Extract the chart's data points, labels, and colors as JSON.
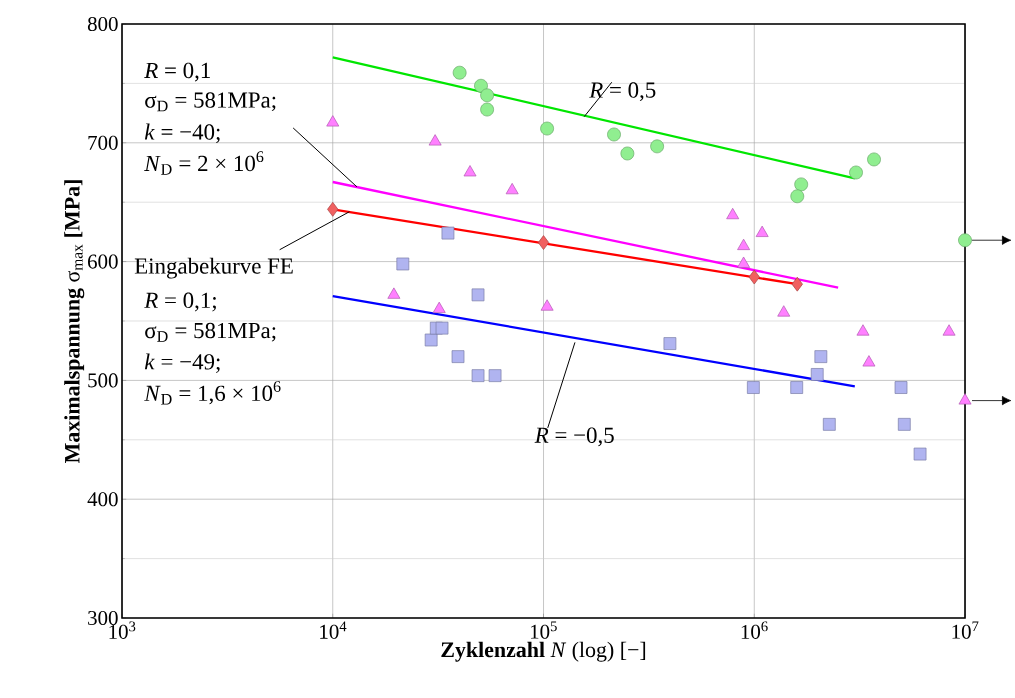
{
  "chart_data": {
    "type": "scatter",
    "xlabel": "**Zyklenzahl** *N* (log) [−]",
    "ylabel": "**Maximalspannung** σ$_{max}$ **[MPa]**",
    "log": "x",
    "grid": true,
    "xlim": [
      1000,
      10000000
    ],
    "ylim": [
      300,
      800
    ],
    "xticks": [
      {
        "value": 1000,
        "label": "10$^{3}$"
      },
      {
        "value": 10000,
        "label": "10$^{4}$"
      },
      {
        "value": 100000,
        "label": "10$^{5}$"
      },
      {
        "value": 1000000,
        "label": "10$^{6}$"
      },
      {
        "value": 10000000,
        "label": "10$^{7}$"
      }
    ],
    "yticks": [
      300,
      400,
      500,
      600,
      700,
      800
    ],
    "series": [
      {
        "marker": "circle",
        "color": "#90ee90",
        "x": [
          40000,
          50500,
          54000,
          54000,
          104000,
          216000,
          250000,
          346000,
          3040000,
          3700000,
          1670000,
          1600000,
          10000000
        ],
        "values": [
          759,
          748,
          740,
          728,
          712,
          707,
          691,
          697,
          675,
          686,
          665,
          655,
          618
        ]
      },
      {
        "marker": "triangle",
        "color": "#ff80ff",
        "x": [
          10000,
          30600,
          44800,
          71000,
          790000,
          890000,
          1090000,
          890000,
          19500,
          32000,
          104000,
          1380000,
          3280000,
          3500000,
          8400000,
          10000000
        ],
        "values": [
          717,
          701,
          675,
          660,
          639,
          613,
          624,
          598,
          572,
          560,
          562,
          557,
          541,
          515,
          541,
          483
        ]
      },
      {
        "marker": "square",
        "color": "#b0b4f0",
        "x": [
          21500,
          35200,
          29300,
          31000,
          33000,
          39300,
          48900,
          48900,
          58900,
          398000,
          2070000,
          1990000,
          990000,
          1590000,
          4970000,
          2270000,
          5150000,
          6120000
        ],
        "values": [
          598,
          624,
          534,
          544,
          544,
          520,
          504,
          572,
          504,
          531,
          520,
          505,
          494,
          494,
          494,
          463,
          463,
          438
        ]
      },
      {
        "marker": "diamond",
        "color": "#f06060",
        "x": [
          10000,
          100000,
          1000000,
          1600000
        ],
        "values": [
          644,
          616,
          587,
          581
        ]
      },
      {
        "type": "line",
        "color": "#00e600",
        "x": [
          10000,
          3000000
        ],
        "values": [
          772,
          670
        ]
      },
      {
        "type": "line",
        "color": "#ff00ff",
        "x": [
          10000,
          2500000
        ],
        "values": [
          667,
          578
        ]
      },
      {
        "type": "line",
        "color": "#ff0000",
        "x": [
          10000,
          1600000
        ],
        "values": [
          644,
          581
        ]
      },
      {
        "type": "line",
        "color": "#0000ff",
        "x": [
          10000,
          3000000
        ],
        "values": [
          571,
          495
        ]
      }
    ],
    "annotations": [
      "*R* = 0,1",
      {
        "text": "σ$_{D}$ = 581MPa;",
        "x": 13000,
        "y": 663
      },
      "*k* = −40;",
      "*N*$_{D}$ = 2 × 10$^{6}$",
      {
        "text": "Eingabekurve FE",
        "x": 12000,
        "y": 642
      },
      "*R* = 0,1;",
      "σ$_{D}$ = 581MPa;",
      "*k* = −49;",
      "*N*$_{D}$ = 1,6 × 10$^{6}$",
      {
        "text": "*R* = 0,5",
        "x": 156000,
        "y": 722
      },
      {
        "text": "*R* = −0,5",
        "x": 141000,
        "y": 532
      }
    ]
  }
}
